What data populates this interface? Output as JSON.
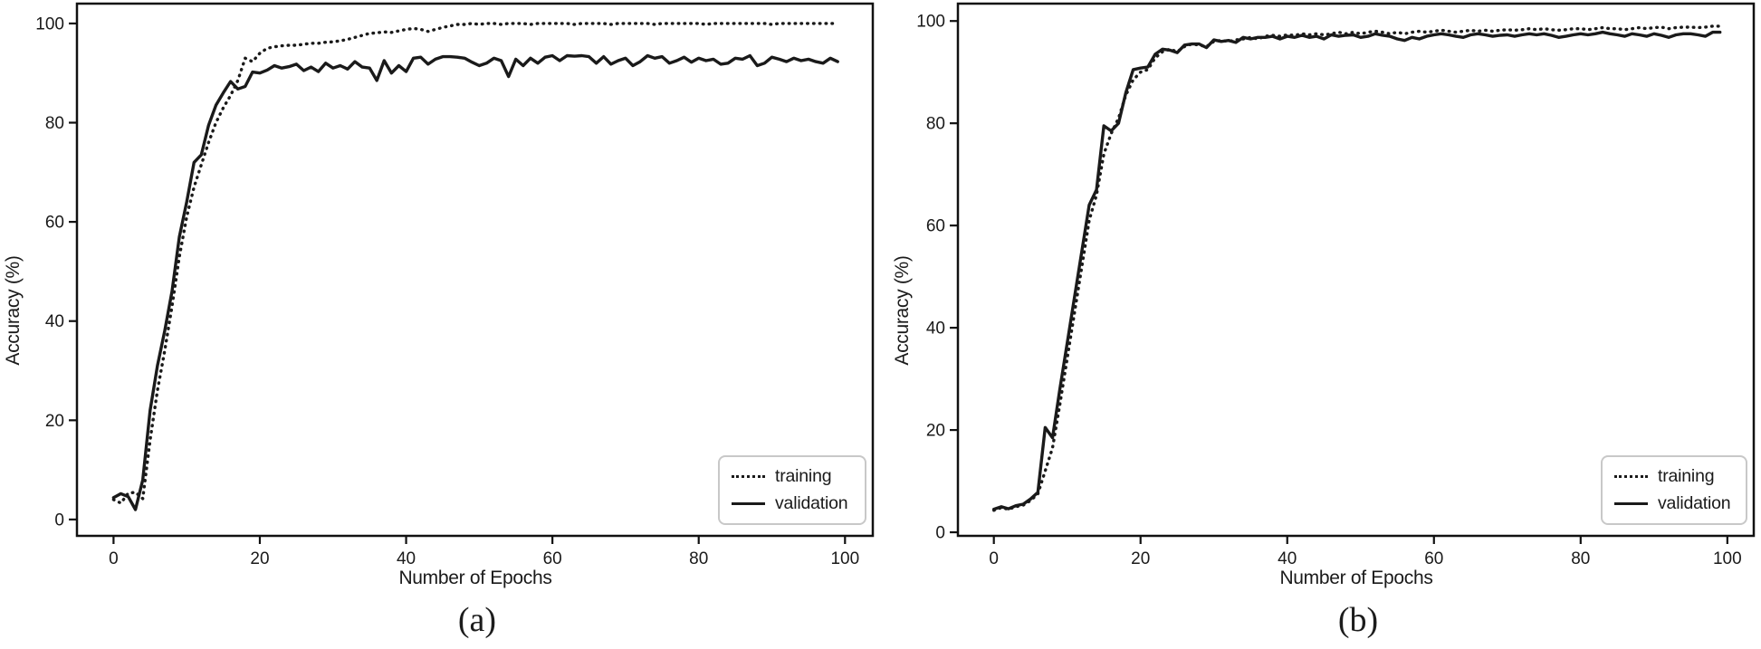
{
  "figure": {
    "background": "#ffffff",
    "line_color": "#1a1a1a",
    "axis_color": "#111111",
    "legend_border_color": "#c8c8c8"
  },
  "chart_data": [
    {
      "id": "a",
      "type": "line",
      "caption": "(a)",
      "xlabel": "Number of Epochs",
      "ylabel": "Accuracy (%)",
      "x_start": 0,
      "x_step": 1,
      "n_points": 100,
      "xlim": [
        -5,
        103.8
      ],
      "ylim": [
        -3.3,
        104
      ],
      "xticks": [
        0,
        20,
        40,
        60,
        80,
        100
      ],
      "yticks": [
        0,
        20,
        40,
        60,
        80,
        100
      ],
      "grid": false,
      "legend": {
        "position": "lower right",
        "entries": [
          "training",
          "validation"
        ]
      },
      "series": [
        {
          "name": "training",
          "style": "dotted",
          "values": [
            4,
            3.3,
            5.3,
            5.5,
            4.2,
            16,
            26,
            34,
            43,
            53,
            61,
            67,
            71.5,
            76,
            80,
            83,
            85.5,
            88.5,
            93,
            92.3,
            94,
            95,
            95.3,
            95.5,
            95.6,
            95.6,
            95.8,
            96,
            96,
            96.2,
            96.3,
            96.5,
            96.8,
            97.2,
            97.6,
            98,
            98.1,
            98.3,
            98.2,
            98.5,
            98.8,
            99,
            98.8,
            98.4,
            98.8,
            99.2,
            99.5,
            99.8,
            99.8,
            100,
            99.8,
            100,
            100,
            99.8,
            100,
            100,
            100,
            99.8,
            100,
            100,
            100,
            100,
            100,
            99.8,
            100,
            100,
            100,
            100,
            99.8,
            100,
            100,
            100,
            100,
            100,
            99.8,
            100,
            100,
            100,
            100,
            100,
            100,
            99.8,
            100,
            100,
            100,
            100,
            100,
            100,
            100,
            100,
            99.8,
            100,
            100,
            100,
            100,
            100,
            100,
            100,
            100,
            100
          ]
        },
        {
          "name": "validation",
          "style": "solid",
          "values": [
            4.4,
            5.2,
            4.6,
            2,
            8,
            22,
            31,
            38,
            46,
            57,
            64,
            72,
            73.5,
            79.5,
            83.5,
            86,
            88.3,
            86.8,
            87.3,
            90.2,
            90,
            90.6,
            91.5,
            91,
            91.3,
            91.8,
            90.5,
            91.2,
            90.3,
            92,
            91,
            91.5,
            90.8,
            92.3,
            91.2,
            91,
            88.5,
            92.5,
            90,
            91.5,
            90.3,
            93,
            93.2,
            91.8,
            92.8,
            93.3,
            93.3,
            93.2,
            93,
            92.2,
            91.5,
            92,
            93,
            92.5,
            89.3,
            92.8,
            91.5,
            93,
            92,
            93.2,
            93.5,
            92.5,
            93.5,
            93.4,
            93.5,
            93.3,
            92,
            93.3,
            91.8,
            92.5,
            93,
            91.5,
            92.3,
            93.5,
            93,
            93.3,
            92,
            92.5,
            93.2,
            92.2,
            93,
            92.5,
            92.8,
            91.8,
            92,
            93,
            92.8,
            93.5,
            91.5,
            92,
            93.2,
            92.8,
            92.3,
            93,
            92.5,
            92.8,
            92.3,
            92,
            93,
            92.3
          ]
        }
      ]
    },
    {
      "id": "b",
      "type": "line",
      "caption": "(b)",
      "xlabel": "Number of Epochs",
      "ylabel": "Accuracy (%)",
      "x_start": 0,
      "x_step": 1,
      "n_points": 100,
      "xlim": [
        -4.9,
        103.6
      ],
      "ylim": [
        -0.7,
        103.4
      ],
      "xticks": [
        0,
        20,
        40,
        60,
        80,
        100
      ],
      "yticks": [
        0,
        20,
        40,
        60,
        80,
        100
      ],
      "grid": false,
      "legend": {
        "position": "lower right",
        "entries": [
          "training",
          "validation"
        ]
      },
      "series": [
        {
          "name": "training",
          "style": "dotted",
          "values": [
            4.3,
            4.8,
            4.5,
            5,
            5.3,
            6.2,
            7.5,
            12,
            16.5,
            25,
            34,
            43,
            52,
            61,
            66,
            74,
            78,
            81,
            85.5,
            88.5,
            90,
            90.5,
            92.8,
            94,
            94.5,
            94,
            95,
            95.5,
            95.3,
            95,
            96,
            96.2,
            96,
            96.3,
            96.5,
            96.8,
            96.5,
            97,
            97.2,
            97,
            97.3,
            97.2,
            97.5,
            97.3,
            97.5,
            97.3,
            97.5,
            97.8,
            97.5,
            97.8,
            97.5,
            97.8,
            98,
            97.8,
            97.5,
            97.8,
            97.5,
            97.8,
            98,
            97.8,
            98,
            98.2,
            98,
            97.8,
            98,
            98.2,
            98,
            98.2,
            98,
            98.2,
            98.3,
            98.2,
            98.3,
            98.5,
            98.3,
            98.5,
            98.3,
            98.2,
            98.3,
            98.5,
            98.5,
            98.3,
            98.5,
            98.7,
            98.5,
            98.5,
            98.3,
            98.5,
            98.7,
            98.5,
            98.7,
            98.8,
            98.5,
            98.7,
            98.8,
            98.8,
            98.7,
            98.8,
            99,
            99
          ]
        },
        {
          "name": "validation",
          "style": "solid",
          "values": [
            4.5,
            5,
            4.6,
            5.2,
            5.5,
            6.5,
            7.8,
            20.5,
            18.5,
            28,
            37,
            46,
            55,
            64,
            67,
            79.5,
            78.5,
            80,
            86,
            90.5,
            90.8,
            91,
            93.5,
            94.5,
            94.3,
            93.8,
            95.3,
            95.5,
            95.5,
            94.8,
            96.3,
            96,
            96.2,
            95.8,
            96.8,
            96.5,
            96.8,
            96.8,
            97,
            96.5,
            97,
            96.8,
            97.2,
            96.8,
            97,
            96.5,
            97.3,
            97,
            97.2,
            97.3,
            96.8,
            97,
            97.5,
            97.2,
            97,
            96.5,
            96.2,
            96.8,
            96.5,
            97,
            97.3,
            97.5,
            97.3,
            97,
            96.8,
            97.3,
            97.5,
            97.3,
            97,
            97.2,
            97.3,
            97,
            97.3,
            97.5,
            97.3,
            97.5,
            97.2,
            96.8,
            97,
            97.3,
            97.5,
            97.3,
            97.5,
            97.8,
            97.5,
            97.3,
            97,
            97.5,
            97.3,
            97,
            97.5,
            97.2,
            96.8,
            97.3,
            97.5,
            97.5,
            97.3,
            97,
            97.8,
            97.8
          ]
        }
      ]
    }
  ]
}
